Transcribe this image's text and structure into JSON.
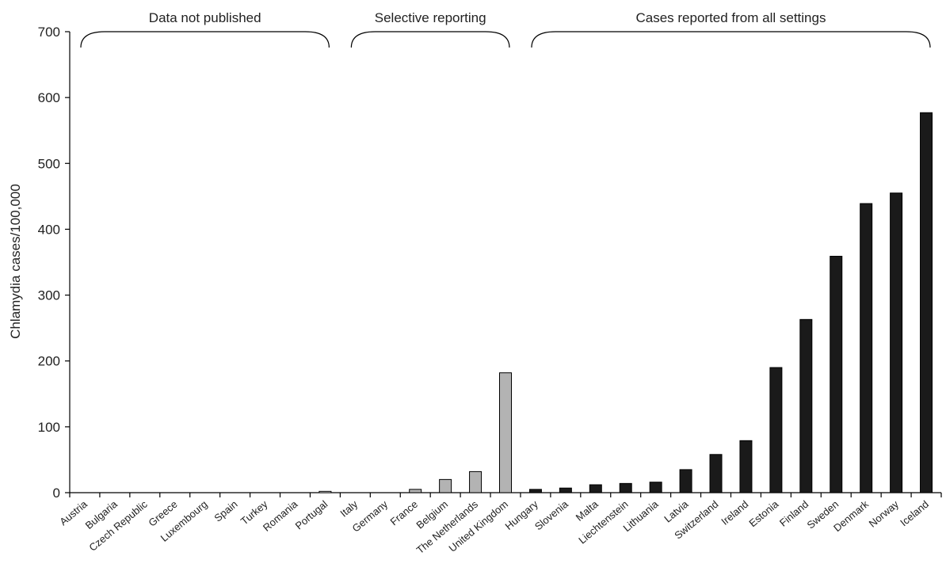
{
  "chart_data": {
    "type": "bar",
    "title": "",
    "xlabel": "",
    "ylabel": "Chlamydia cases/100,000",
    "ylim": [
      0,
      700
    ],
    "yticks": [
      0,
      100,
      200,
      300,
      400,
      500,
      600,
      700
    ],
    "grid": false,
    "categories": [
      "Austria",
      "Bulgaria",
      "Czech Republic",
      "Greece",
      "Luxembourg",
      "Spain",
      "Turkey",
      "Romania",
      "Portugal",
      "Italy",
      "Germany",
      "France",
      "Belgium",
      "The Netherlands",
      "United Kingdom",
      "Hungary",
      "Slovenia",
      "Malta",
      "Liechtenstein",
      "Lithuania",
      "Latvia",
      "Switzerland",
      "Ireland",
      "Estonia",
      "Finland",
      "Sweden",
      "Denmark",
      "Norway",
      "Iceland"
    ],
    "values": [
      0,
      0,
      0,
      0,
      0,
      0,
      0,
      0,
      2,
      0,
      0,
      5,
      20,
      32,
      182,
      5,
      7,
      12,
      14,
      16,
      35,
      58,
      79,
      190,
      263,
      359,
      439,
      455,
      577
    ],
    "groups": [
      {
        "label": "Data not published",
        "start": 0,
        "end": 8,
        "color": "#ffffff"
      },
      {
        "label": "Selective reporting",
        "start": 9,
        "end": 14,
        "color": "#b3b3b3"
      },
      {
        "label": "Cases reported from all settings",
        "start": 15,
        "end": 28,
        "color": "#1a1a1a"
      }
    ]
  }
}
